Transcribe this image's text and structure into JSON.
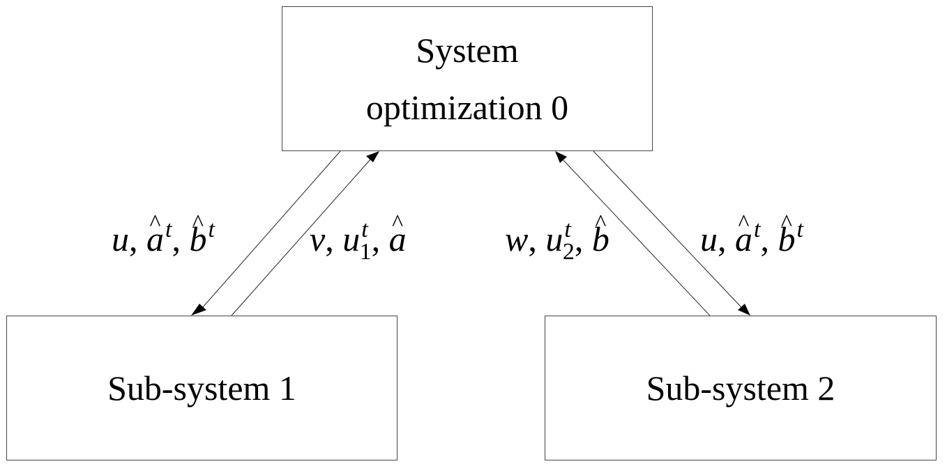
{
  "nodes": {
    "top": {
      "line1": "System",
      "line2": "optimization 0"
    },
    "left": {
      "label": "Sub-system 1"
    },
    "right": {
      "label": "Sub-system 2"
    }
  },
  "edges": {
    "top_to_left": {
      "label": "u, â^t, b̂^t",
      "vars": [
        "u",
        "a",
        "t",
        "b",
        "t"
      ]
    },
    "left_to_top": {
      "label": "v, u_1^t, â",
      "vars": [
        "v",
        "u",
        "t",
        "1",
        "a"
      ]
    },
    "right_to_top": {
      "label": "w, u_2^t, b̂",
      "vars": [
        "w",
        "u",
        "t",
        "2",
        "b"
      ]
    },
    "top_to_right": {
      "label": "u, â^t, b̂^t",
      "vars": [
        "u",
        "a",
        "t",
        "b",
        "t"
      ]
    }
  }
}
